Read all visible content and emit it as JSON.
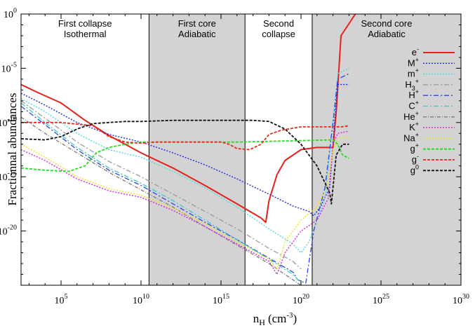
{
  "chart_data": {
    "type": "line",
    "title": "",
    "xlabel": "n",
    "xlabel_sub": "H",
    "xlabel_unit": "(cm",
    "xlabel_unit_sup": "-3",
    "xlabel_close": ")",
    "ylabel": "Fractionnal abundances",
    "xscale": "log",
    "yscale": "log",
    "xlim_log10": [
      2.5,
      30
    ],
    "ylim_log10": [
      -25,
      0
    ],
    "xticks": [
      {
        "base": "10",
        "exp": "5",
        "v": 5
      },
      {
        "base": "10",
        "exp": "10",
        "v": 10
      },
      {
        "base": "10",
        "exp": "15",
        "v": 15
      },
      {
        "base": "10",
        "exp": "20",
        "v": 20
      },
      {
        "base": "10",
        "exp": "25",
        "v": 25
      },
      {
        "base": "10",
        "exp": "30",
        "v": 30
      }
    ],
    "yticks": [
      {
        "base": "10",
        "exp": "-20",
        "v": -20
      },
      {
        "base": "10",
        "exp": "-15",
        "v": -15
      },
      {
        "base": "10",
        "exp": "-10",
        "v": -10
      },
      {
        "base": "10",
        "exp": "-5",
        "v": -5
      },
      {
        "base": "10",
        "exp": "0",
        "v": 0
      }
    ],
    "regions": [
      {
        "x0": 2.5,
        "x1": 10.5,
        "shaded": false,
        "line1": "First collapse",
        "line2": "Isothermal"
      },
      {
        "x0": 10.5,
        "x1": 16.5,
        "shaded": true,
        "line1": "First core",
        "line2": "Adiabatic"
      },
      {
        "x0": 16.5,
        "x1": 20.7,
        "shaded": false,
        "line1": "Second",
        "line2": "collapse"
      },
      {
        "x0": 20.7,
        "x1": 30,
        "shaded": true,
        "line1": "Second core",
        "line2": "Adiabatic"
      }
    ],
    "series": [
      {
        "name": "e",
        "sup": "-",
        "color": "#e8201b",
        "dash": "",
        "width": 2,
        "points": [
          [
            2.5,
            -6.5
          ],
          [
            3.5,
            -7.2
          ],
          [
            5,
            -8.2
          ],
          [
            6.5,
            -9.8
          ],
          [
            8,
            -11.2
          ],
          [
            10,
            -12.8
          ],
          [
            12,
            -14.2
          ],
          [
            14,
            -15.8
          ],
          [
            16,
            -17.5
          ],
          [
            17.5,
            -18.8
          ],
          [
            17.8,
            -19.2
          ],
          [
            18,
            -17.2
          ],
          [
            18.5,
            -14.8
          ],
          [
            19,
            -13.5
          ],
          [
            20,
            -12.5
          ],
          [
            21,
            -12.3
          ],
          [
            22,
            -12.3
          ],
          [
            22.2,
            -9
          ],
          [
            22.5,
            -2
          ],
          [
            23.4,
            0
          ]
        ]
      },
      {
        "name": "M",
        "sup": "+",
        "color": "#1a2bd9",
        "dash": "2,2",
        "width": 1.4,
        "points": [
          [
            2.5,
            -7.3
          ],
          [
            4,
            -8.4
          ],
          [
            6,
            -10
          ],
          [
            8,
            -11.1
          ],
          [
            10,
            -11.8
          ],
          [
            12,
            -12.8
          ],
          [
            14,
            -13.9
          ],
          [
            16,
            -15.2
          ],
          [
            18,
            -16.6
          ],
          [
            19.5,
            -17.7
          ],
          [
            20.5,
            -18.2
          ],
          [
            20.8,
            -18.6
          ],
          [
            21.2,
            -17.8
          ],
          [
            21.8,
            -16
          ],
          [
            22.1,
            -10
          ],
          [
            22.3,
            -6.5
          ],
          [
            23,
            -6.5
          ]
        ]
      },
      {
        "name": "m",
        "sup": "+",
        "color": "#4fd9df",
        "dash": "2,2",
        "width": 1.4,
        "points": [
          [
            2.5,
            -7.8
          ],
          [
            4,
            -9
          ],
          [
            6,
            -11
          ],
          [
            8,
            -12.5
          ],
          [
            10,
            -13.2
          ],
          [
            12,
            -14.5
          ],
          [
            14,
            -16
          ],
          [
            16,
            -17.8
          ],
          [
            18,
            -19.8
          ],
          [
            19.5,
            -21.2
          ],
          [
            20,
            -22
          ],
          [
            20.5,
            -21
          ],
          [
            21.5,
            -17
          ],
          [
            22,
            -10
          ],
          [
            22.3,
            -5.5
          ],
          [
            23,
            -5
          ]
        ]
      },
      {
        "name": "H",
        "sub": "3",
        "sup": "+",
        "color": "#9a9a9a",
        "dash": "7,3,2,3",
        "width": 1.3,
        "points": [
          [
            2.5,
            -8
          ],
          [
            4,
            -9.6
          ],
          [
            6,
            -11.8
          ],
          [
            8,
            -13.6
          ],
          [
            10,
            -15
          ],
          [
            12,
            -16.6
          ],
          [
            14,
            -18.2
          ],
          [
            16,
            -19.8
          ],
          [
            18,
            -21.6
          ],
          [
            19.5,
            -22.8
          ],
          [
            20,
            -23.5
          ]
        ]
      },
      {
        "name": "H",
        "sup": "+",
        "color": "#2a43e8",
        "dash": "7,3,2,3",
        "width": 1.3,
        "points": [
          [
            2.5,
            -8.5
          ],
          [
            4,
            -10.2
          ],
          [
            6,
            -12.5
          ],
          [
            8,
            -14.4
          ],
          [
            10,
            -15.8
          ],
          [
            12,
            -17.5
          ],
          [
            14,
            -19.2
          ],
          [
            16,
            -20.8
          ],
          [
            18,
            -22.5
          ],
          [
            19.5,
            -23.8
          ],
          [
            19.8,
            -24.5
          ],
          [
            20.3,
            -24.8
          ],
          [
            20.8,
            -20
          ],
          [
            21.5,
            -16
          ],
          [
            22,
            -10
          ],
          [
            22.3,
            -6
          ],
          [
            23,
            -5.5
          ]
        ]
      },
      {
        "name": "C",
        "sup": "+",
        "color": "#33cccc",
        "dash": "7,3,2,3",
        "width": 1.3,
        "points": [
          [
            2.5,
            -8.2
          ],
          [
            4,
            -10
          ],
          [
            6,
            -12.3
          ],
          [
            8,
            -14.2
          ],
          [
            10,
            -15.6
          ],
          [
            12,
            -17.2
          ],
          [
            14,
            -19
          ],
          [
            16,
            -20.8
          ],
          [
            18,
            -22.6
          ],
          [
            19.5,
            -24
          ],
          [
            20,
            -24.8
          ]
        ]
      },
      {
        "name": "He",
        "sup": "+",
        "color": "#7a7a7a",
        "dash": "5,2,1,2",
        "width": 1.3,
        "points": [
          [
            2.5,
            -9.5
          ],
          [
            4,
            -11
          ],
          [
            6,
            -12.8
          ],
          [
            8,
            -14.6
          ],
          [
            10,
            -16.2
          ],
          [
            12,
            -17.8
          ],
          [
            14,
            -19.6
          ],
          [
            16,
            -21.3
          ],
          [
            18,
            -23
          ],
          [
            19.5,
            -24.5
          ],
          [
            20,
            -25
          ]
        ]
      },
      {
        "name": "K",
        "sup": "+",
        "color": "#e020e0",
        "dash": "2,2",
        "width": 1.4,
        "points": [
          [
            2.5,
            -12.5
          ],
          [
            4,
            -13.5
          ],
          [
            6,
            -15.2
          ],
          [
            8,
            -16.3
          ],
          [
            10,
            -16.9
          ],
          [
            12,
            -18.1
          ],
          [
            14,
            -19.6
          ],
          [
            16,
            -21.2
          ],
          [
            18,
            -22.8
          ],
          [
            18.5,
            -24
          ],
          [
            19,
            -22
          ],
          [
            20,
            -20
          ],
          [
            21,
            -19
          ],
          [
            21.7,
            -17
          ],
          [
            22,
            -12
          ],
          [
            22.3,
            -11
          ],
          [
            23,
            -10.8
          ]
        ]
      },
      {
        "name": "Na",
        "sup": "+",
        "color": "#f2e21a",
        "dash": "2,2",
        "width": 1.4,
        "points": [
          [
            2.5,
            -12
          ],
          [
            4,
            -13.2
          ],
          [
            6,
            -15
          ],
          [
            8,
            -16.1
          ],
          [
            10,
            -16.7
          ],
          [
            12,
            -17.9
          ],
          [
            14,
            -19.3
          ],
          [
            16,
            -21
          ],
          [
            18,
            -22.6
          ],
          [
            18.5,
            -23.5
          ],
          [
            19,
            -21
          ],
          [
            20,
            -19
          ],
          [
            21,
            -17.8
          ],
          [
            21.6,
            -16
          ],
          [
            22,
            -12.5
          ],
          [
            22.3,
            -11.5
          ],
          [
            23,
            -11.3
          ]
        ]
      },
      {
        "name": "g",
        "sup": "+",
        "color": "#22dd22",
        "dash": "4,2",
        "width": 1.8,
        "points": [
          [
            2.5,
            -14.2
          ],
          [
            4,
            -14.4
          ],
          [
            5.5,
            -14.5
          ],
          [
            6.5,
            -14
          ],
          [
            7.2,
            -12.8
          ],
          [
            8,
            -12.3
          ],
          [
            9,
            -12
          ],
          [
            10,
            -11.8
          ],
          [
            16,
            -11.8
          ],
          [
            22,
            -11.6
          ],
          [
            22.3,
            -12
          ],
          [
            22.6,
            -13
          ],
          [
            23,
            -13.3
          ]
        ]
      },
      {
        "name": "g",
        "sup": "-",
        "color": "#e82a1a",
        "dash": "4,2",
        "width": 1.8,
        "points": [
          [
            2.5,
            -10
          ],
          [
            5,
            -10
          ],
          [
            7,
            -10.3
          ],
          [
            8,
            -11.3
          ],
          [
            9,
            -11.8
          ],
          [
            10,
            -11.9
          ],
          [
            11,
            -11.8
          ],
          [
            15,
            -11.8
          ],
          [
            15.5,
            -12
          ],
          [
            16,
            -12.4
          ],
          [
            16.8,
            -12.5
          ],
          [
            17.5,
            -12
          ],
          [
            18,
            -11.1
          ],
          [
            18.8,
            -10.7
          ],
          [
            20,
            -10.4
          ],
          [
            22.5,
            -10.4
          ],
          [
            23,
            -10.3
          ]
        ]
      },
      {
        "name": "g",
        "sup": "0",
        "color": "#111111",
        "dash": "4,2",
        "width": 1.8,
        "points": [
          [
            2.5,
            -11.5
          ],
          [
            4,
            -11.6
          ],
          [
            5,
            -11.3
          ],
          [
            6,
            -10.6
          ],
          [
            7,
            -10.1
          ],
          [
            8,
            -10
          ],
          [
            9,
            -9.9
          ],
          [
            10,
            -9.9
          ],
          [
            12,
            -9.8
          ],
          [
            14,
            -9.8
          ],
          [
            16,
            -9.8
          ],
          [
            17,
            -9.8
          ],
          [
            18,
            -9.9
          ],
          [
            19,
            -10.6
          ],
          [
            20,
            -12
          ],
          [
            21,
            -14
          ],
          [
            21.8,
            -16.5
          ],
          [
            21.9,
            -17.5
          ],
          [
            22.2,
            -13
          ],
          [
            22.6,
            -12
          ],
          [
            23,
            -12
          ]
        ]
      }
    ]
  }
}
